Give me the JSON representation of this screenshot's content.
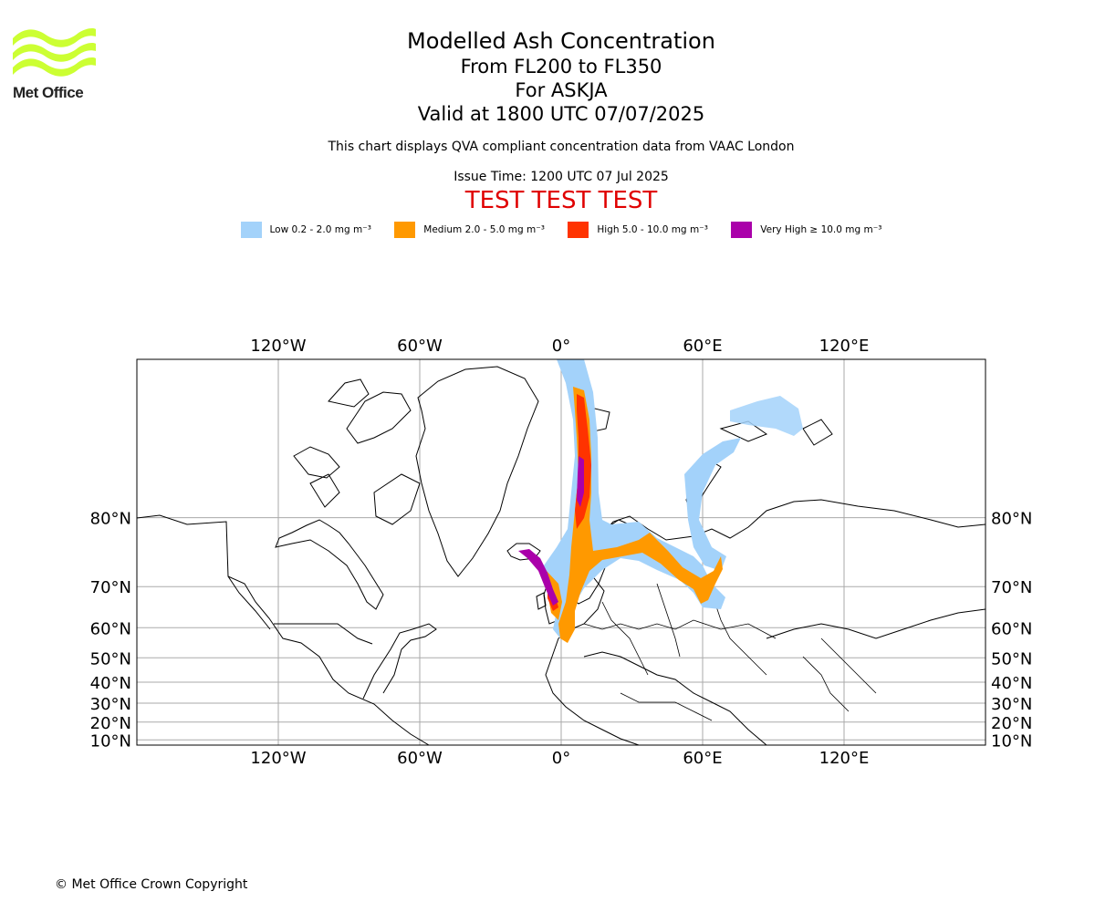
{
  "logo": {
    "text": "Met Office",
    "color": "#ccff33"
  },
  "title": {
    "line1": "Modelled Ash Concentration",
    "line2": "From FL200 to FL350",
    "line3": "For ASKJA",
    "line4": "Valid at 1800 UTC 07/07/2025"
  },
  "subtitle": "This chart displays QVA compliant concentration data from VAAC London",
  "issue_time": "Issue Time: 1200 UTC 07 Jul 2025",
  "test_banner": "TEST TEST TEST",
  "legend": [
    {
      "label": "Low 0.2 - 2.0 mg m⁻³",
      "color": "#a3d2fa"
    },
    {
      "label": "Medium 2.0 - 5.0 mg m⁻³",
      "color": "#ff9900"
    },
    {
      "label": "High 5.0 - 10.0 mg m⁻³",
      "color": "#ff3300"
    },
    {
      "label": "Very High ≥ 10.0 mg m⁻³",
      "color": "#aa00aa"
    }
  ],
  "map": {
    "lon_range": [
      -180,
      180
    ],
    "lat_range": [
      7,
      88
    ],
    "lon_ticks": [
      {
        "lon": -120,
        "label": "120°W"
      },
      {
        "lon": -60,
        "label": "60°W"
      },
      {
        "lon": 0,
        "label": "0°"
      },
      {
        "lon": 60,
        "label": "60°E"
      },
      {
        "lon": 120,
        "label": "120°E"
      }
    ],
    "lat_ticks": [
      {
        "lat": 80,
        "label": "80°N"
      },
      {
        "lat": 70,
        "label": "70°N"
      },
      {
        "lat": 60,
        "label": "60°N"
      },
      {
        "lat": 50,
        "label": "50°N"
      },
      {
        "lat": 40,
        "label": "40°N"
      },
      {
        "lat": 30,
        "label": "30°N"
      },
      {
        "lat": 20,
        "label": "20°N"
      },
      {
        "lat": 10,
        "label": "10°N"
      }
    ]
  },
  "copyright": "© Met Office Crown Copyright"
}
